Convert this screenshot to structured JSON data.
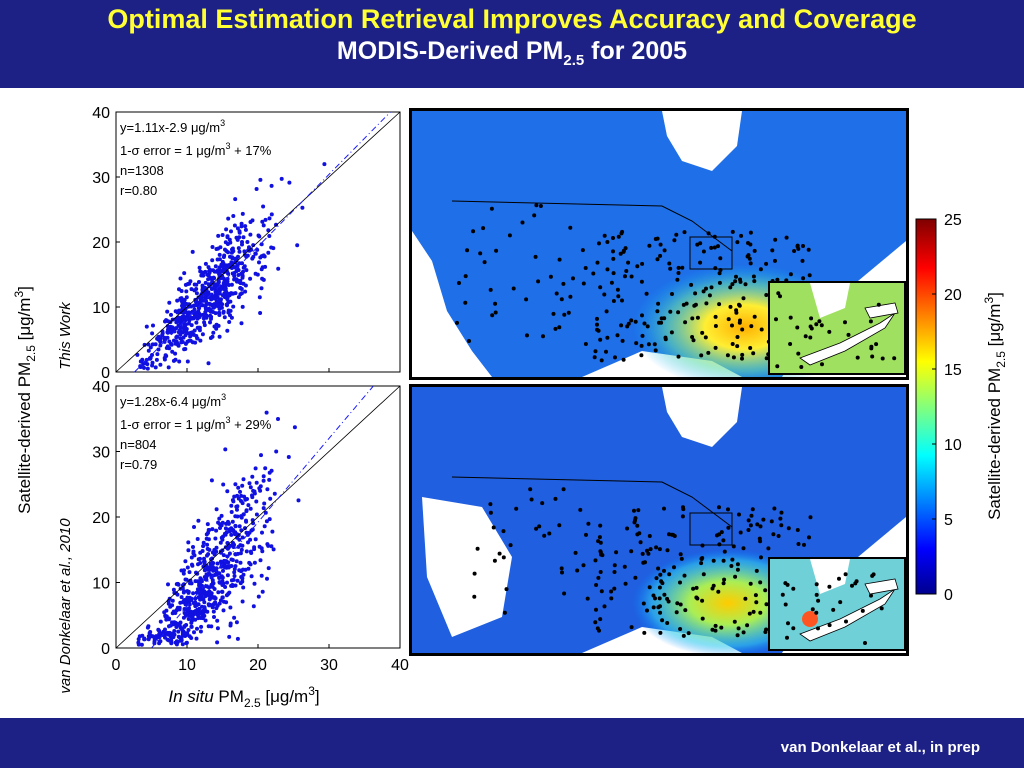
{
  "header": {
    "title": "Optimal Estimation Retrieval Improves Accuracy and Coverage",
    "subtitle_main": "MODIS-Derived PM",
    "subtitle_sub": "2.5",
    "subtitle_tail": " for 2005"
  },
  "footer": {
    "credit": "van Donkelaar et al., in prep"
  },
  "labels": {
    "y_axis": "Satellite-derived PM",
    "y_axis_sub": "2.5",
    "y_axis_units": " [μg/m",
    "y_axis_sup": "3",
    "y_axis_close": "]",
    "x_axis_italic": "In situ",
    "x_axis_pm": " PM",
    "x_axis_sub": "2.5",
    "x_axis_units": " [μg/m",
    "x_axis_sup": "3",
    "x_axis_close": "]"
  },
  "colorbar": {
    "ticks": [
      "25",
      "20",
      "15",
      "10",
      "5",
      "0"
    ],
    "label": "Satellite-derived PM",
    "label_sub": "2.5",
    "label_units": " [μg/m",
    "label_sup": "3",
    "label_close": "]",
    "range": [
      0,
      25
    ]
  },
  "colors": {
    "background": "#1d2085",
    "title": "#ffff33",
    "points": "#1010e0",
    "fit_line": "#1a1aff"
  },
  "chart_data": [
    {
      "type": "scatter",
      "row_label": "This Work",
      "xlim": [
        0,
        40
      ],
      "ylim": [
        0,
        40
      ],
      "ticks": [
        "0",
        "10",
        "20",
        "30",
        "40"
      ],
      "stats": {
        "line1": "y=1.11x-2.9 μg/m",
        "line1_sup": "3",
        "line2_a": "1-σ error = 1 μg/m",
        "line2_sup": "3",
        "line2_b": " + 17%",
        "line3": "n=1308",
        "line4": "r=0.80"
      },
      "fit": {
        "slope": 1.11,
        "intercept": -2.9
      },
      "n": 1308,
      "r": 0.8
    },
    {
      "type": "scatter",
      "row_label": "van Donkelaar et al., 2010",
      "xlim": [
        0,
        40
      ],
      "ylim": [
        0,
        40
      ],
      "ticks": [
        "0",
        "10",
        "20",
        "30",
        "40"
      ],
      "stats": {
        "line1": "y=1.28x-6.4 μg/m",
        "line1_sup": "3",
        "line2_a": "1-σ error = 1 μg/m",
        "line2_sup": "3",
        "line2_b": " + 29%",
        "line3": "n=804",
        "line4": "r=0.79"
      },
      "fit": {
        "slope": 1.28,
        "intercept": -6.4
      },
      "n": 804,
      "r": 0.79
    }
  ]
}
